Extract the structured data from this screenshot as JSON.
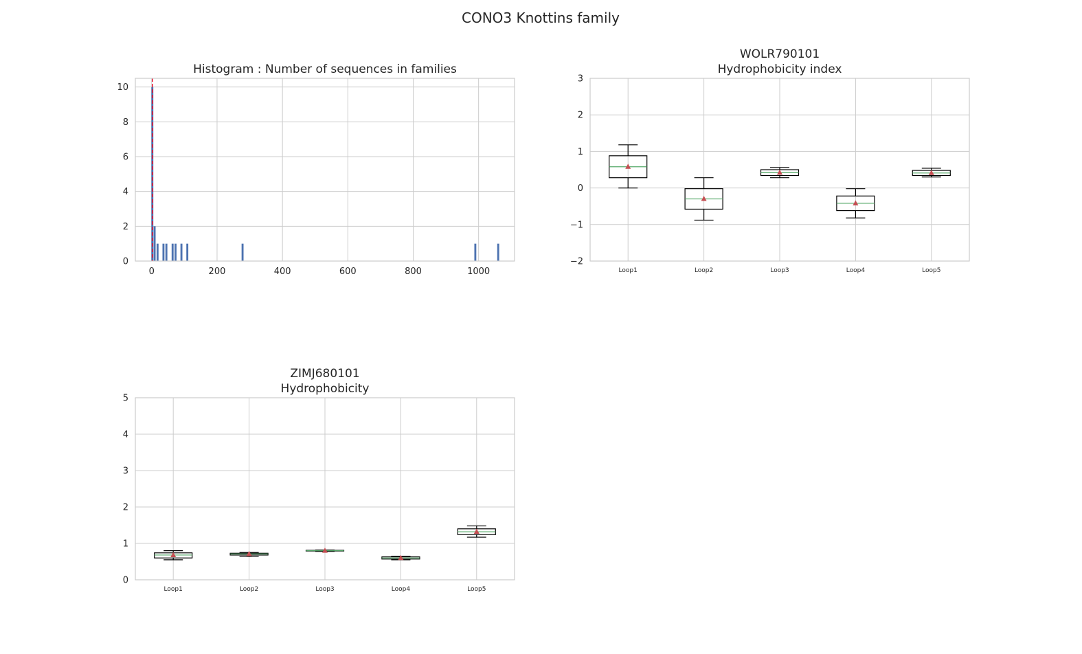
{
  "figure": {
    "title": "CONO3 Knottins family"
  },
  "chart_data": [
    {
      "type": "bar",
      "title": "Histogram : Number of sequences in families",
      "xlim": [
        -50,
        1110
      ],
      "ylim": [
        0,
        10.5
      ],
      "xticks": [
        0,
        200,
        400,
        600,
        800,
        1000
      ],
      "yticks": [
        0,
        2,
        4,
        6,
        8,
        10
      ],
      "grid": true,
      "bars": [
        {
          "x": 2,
          "count": 10
        },
        {
          "x": 9,
          "count": 2
        },
        {
          "x": 18,
          "count": 1
        },
        {
          "x": 36,
          "count": 1
        },
        {
          "x": 45,
          "count": 1
        },
        {
          "x": 64,
          "count": 1
        },
        {
          "x": 73,
          "count": 1
        },
        {
          "x": 91,
          "count": 1
        },
        {
          "x": 109,
          "count": 1
        },
        {
          "x": 278,
          "count": 1
        },
        {
          "x": 990,
          "count": 1
        },
        {
          "x": 1060,
          "count": 1
        }
      ],
      "bin_width": 6,
      "vline": {
        "x": 2,
        "color": "#e8112d",
        "style": "dashed"
      },
      "bar_color": "#4c72b0"
    },
    {
      "type": "boxplot",
      "title": "WOLR790101\nHydrophobicity index",
      "categories": [
        "Loop1",
        "Loop2",
        "Loop3",
        "Loop4",
        "Loop5"
      ],
      "ylim": [
        -2,
        3
      ],
      "yticks": [
        -2,
        -1,
        0,
        1,
        2,
        3
      ],
      "grid": true,
      "boxes": [
        {
          "whislo": 0.0,
          "q1": 0.28,
          "med": 0.58,
          "q3": 0.88,
          "whishi": 1.18,
          "mean": 0.58
        },
        {
          "whislo": -0.88,
          "q1": -0.58,
          "med": -0.3,
          "q3": -0.02,
          "whishi": 0.28,
          "mean": -0.3
        },
        {
          "whislo": 0.28,
          "q1": 0.34,
          "med": 0.42,
          "q3": 0.5,
          "whishi": 0.56,
          "mean": 0.42
        },
        {
          "whislo": -0.82,
          "q1": -0.62,
          "med": -0.42,
          "q3": -0.22,
          "whishi": -0.02,
          "mean": -0.42
        },
        {
          "whislo": 0.3,
          "q1": 0.34,
          "med": 0.41,
          "q3": 0.48,
          "whishi": 0.54,
          "mean": 0.41
        }
      ]
    },
    {
      "type": "boxplot",
      "title": "ZIMJ680101\nHydrophobicity",
      "categories": [
        "Loop1",
        "Loop2",
        "Loop3",
        "Loop4",
        "Loop5"
      ],
      "ylim": [
        0,
        5
      ],
      "yticks": [
        0,
        1,
        2,
        3,
        4,
        5
      ],
      "grid": true,
      "boxes": [
        {
          "whislo": 0.55,
          "q1": 0.6,
          "med": 0.68,
          "q3": 0.74,
          "whishi": 0.8,
          "mean": 0.68
        },
        {
          "whislo": 0.64,
          "q1": 0.68,
          "med": 0.71,
          "q3": 0.73,
          "whishi": 0.75,
          "mean": 0.71
        },
        {
          "whislo": 0.78,
          "q1": 0.79,
          "med": 0.8,
          "q3": 0.81,
          "whishi": 0.82,
          "mean": 0.8
        },
        {
          "whislo": 0.55,
          "q1": 0.57,
          "med": 0.6,
          "q3": 0.63,
          "whishi": 0.65,
          "mean": 0.6
        },
        {
          "whislo": 1.17,
          "q1": 1.24,
          "med": 1.32,
          "q3": 1.4,
          "whishi": 1.48,
          "mean": 1.32
        }
      ]
    }
  ],
  "colors": {
    "grid": "#cccccc",
    "axes": "#cccccc",
    "box": "#000000",
    "median": "#55a868",
    "mean": "#c44e52"
  }
}
